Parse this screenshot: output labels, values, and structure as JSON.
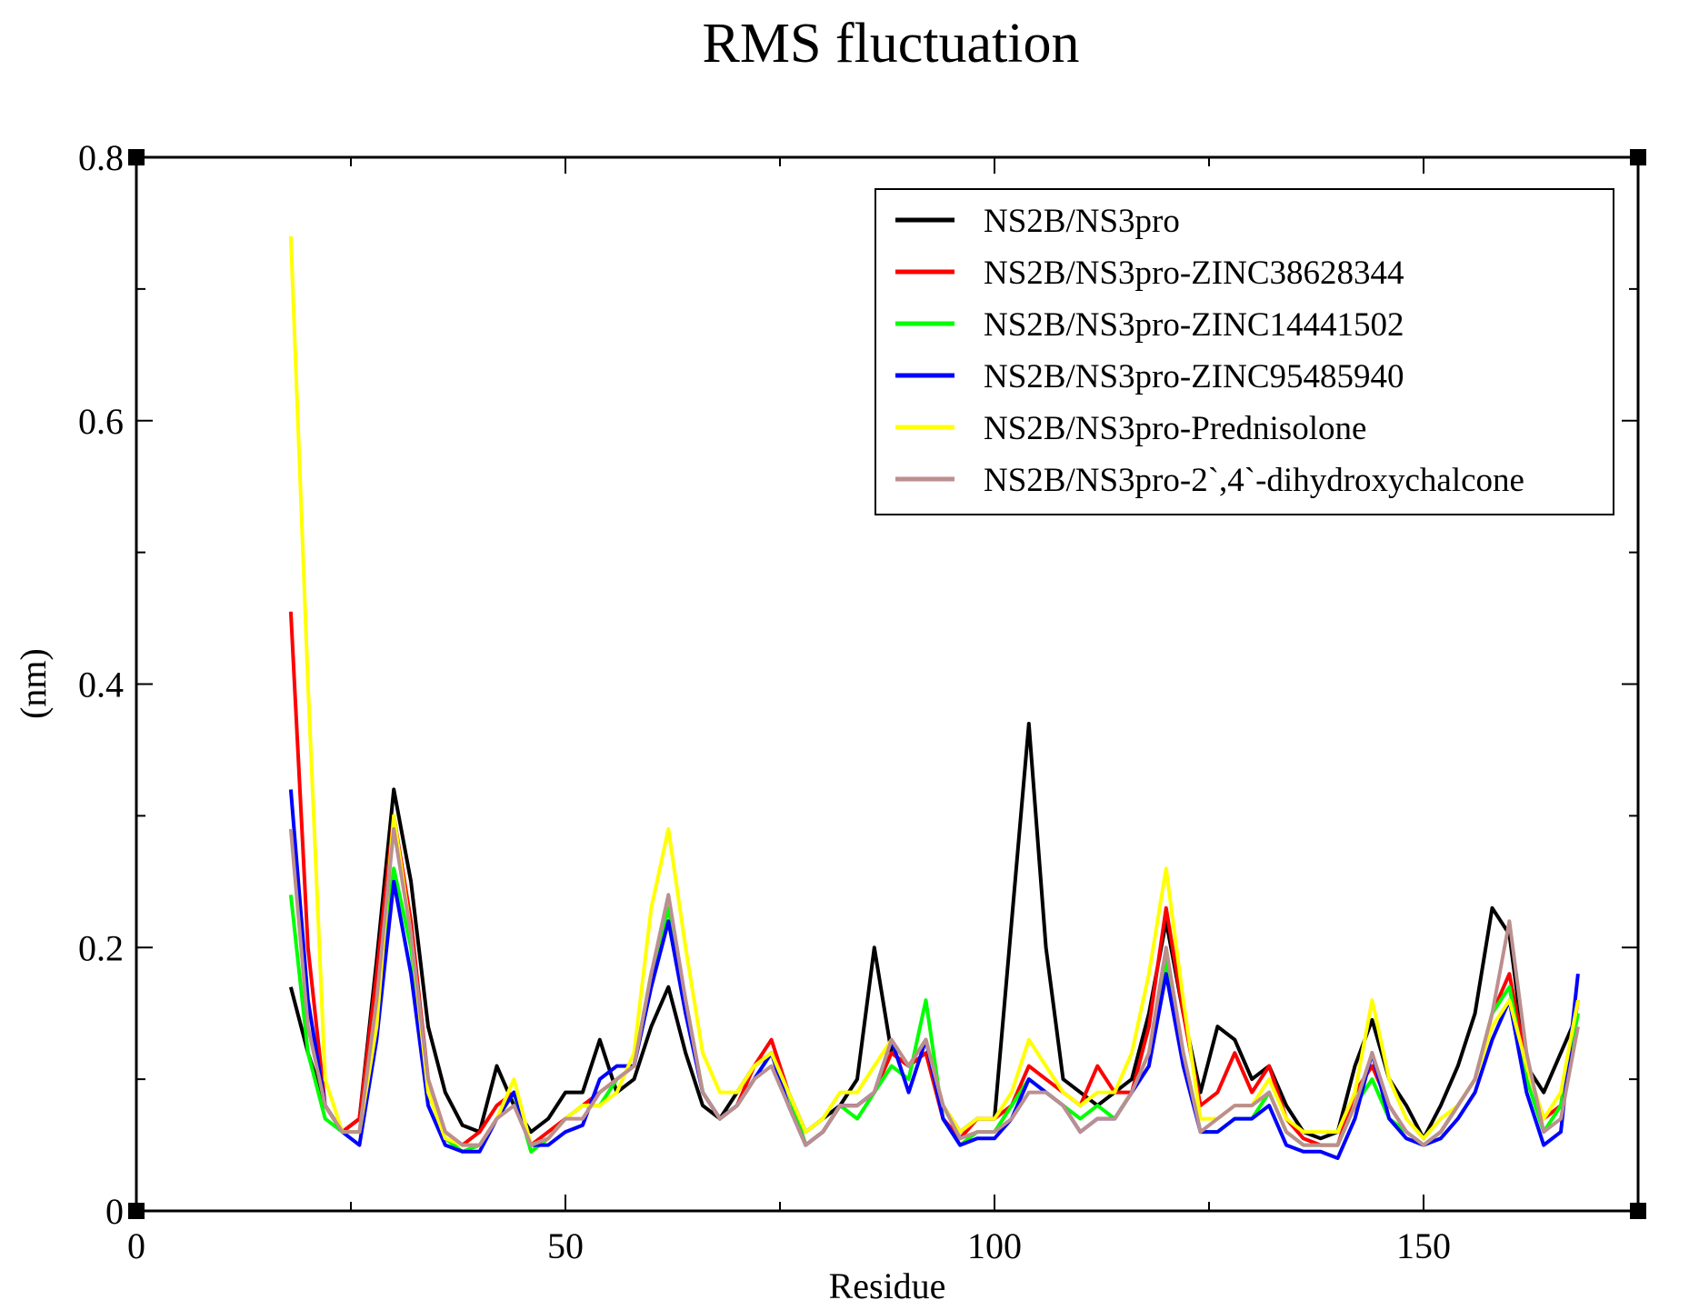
{
  "chart_data": {
    "type": "line",
    "title": "RMS fluctuation",
    "xlabel": "Residue",
    "ylabel": "(nm)",
    "xlim": [
      0,
      175
    ],
    "ylim": [
      0,
      0.8
    ],
    "xticks": [
      0,
      50,
      100,
      150
    ],
    "yticks": [
      0,
      0.2,
      0.4,
      0.6,
      0.8
    ],
    "xtick_labels": [
      "0",
      "50",
      "100",
      "150"
    ],
    "ytick_labels": [
      "0",
      "0.2",
      "0.4",
      "0.6",
      "0.8"
    ],
    "grid": false,
    "legend_position": "top-right",
    "x": [
      18,
      20,
      22,
      24,
      26,
      28,
      30,
      32,
      34,
      36,
      38,
      40,
      42,
      44,
      46,
      48,
      50,
      52,
      54,
      56,
      58,
      60,
      62,
      64,
      66,
      68,
      70,
      72,
      74,
      76,
      78,
      80,
      82,
      84,
      86,
      88,
      90,
      92,
      94,
      96,
      98,
      100,
      102,
      104,
      106,
      108,
      110,
      112,
      114,
      116,
      118,
      120,
      122,
      124,
      126,
      128,
      130,
      132,
      134,
      136,
      138,
      140,
      142,
      144,
      146,
      148,
      150,
      152,
      154,
      156,
      158,
      160,
      162,
      164,
      166,
      168
    ],
    "series": [
      {
        "name": "NS2B/NS3pro",
        "color": "#000000",
        "values": [
          0.17,
          0.12,
          0.08,
          0.06,
          0.07,
          0.19,
          0.32,
          0.25,
          0.14,
          0.09,
          0.065,
          0.06,
          0.11,
          0.08,
          0.06,
          0.07,
          0.09,
          0.09,
          0.13,
          0.09,
          0.1,
          0.14,
          0.17,
          0.12,
          0.08,
          0.07,
          0.09,
          0.11,
          0.12,
          0.09,
          0.06,
          0.07,
          0.08,
          0.1,
          0.2,
          0.12,
          0.11,
          0.13,
          0.08,
          0.06,
          0.07,
          0.07,
          0.22,
          0.37,
          0.2,
          0.1,
          0.09,
          0.08,
          0.09,
          0.1,
          0.15,
          0.22,
          0.15,
          0.09,
          0.14,
          0.13,
          0.1,
          0.11,
          0.08,
          0.06,
          0.055,
          0.06,
          0.11,
          0.145,
          0.1,
          0.08,
          0.055,
          0.08,
          0.11,
          0.15,
          0.23,
          0.21,
          0.11,
          0.09,
          0.12,
          0.15
        ]
      },
      {
        "name": "NS2B/NS3pro-ZINC38628344",
        "color": "#ff0000",
        "values": [
          0.455,
          0.2,
          0.08,
          0.06,
          0.07,
          0.18,
          0.3,
          0.22,
          0.1,
          0.06,
          0.05,
          0.06,
          0.08,
          0.09,
          0.05,
          0.06,
          0.07,
          0.08,
          0.09,
          0.1,
          0.11,
          0.18,
          0.23,
          0.16,
          0.09,
          0.07,
          0.08,
          0.11,
          0.13,
          0.09,
          0.05,
          0.06,
          0.08,
          0.08,
          0.09,
          0.12,
          0.11,
          0.12,
          0.07,
          0.055,
          0.07,
          0.07,
          0.08,
          0.11,
          0.1,
          0.09,
          0.08,
          0.11,
          0.09,
          0.09,
          0.14,
          0.23,
          0.15,
          0.08,
          0.09,
          0.12,
          0.09,
          0.11,
          0.07,
          0.055,
          0.05,
          0.05,
          0.09,
          0.11,
          0.08,
          0.06,
          0.05,
          0.06,
          0.08,
          0.1,
          0.15,
          0.18,
          0.11,
          0.07,
          0.08,
          0.16
        ]
      },
      {
        "name": "NS2B/NS3pro-ZINC14441502",
        "color": "#00ff00",
        "values": [
          0.24,
          0.12,
          0.07,
          0.06,
          0.06,
          0.16,
          0.26,
          0.2,
          0.09,
          0.055,
          0.045,
          0.05,
          0.07,
          0.09,
          0.045,
          0.055,
          0.07,
          0.08,
          0.08,
          0.1,
          0.11,
          0.18,
          0.23,
          0.16,
          0.09,
          0.07,
          0.08,
          0.1,
          0.12,
          0.09,
          0.05,
          0.06,
          0.08,
          0.07,
          0.09,
          0.11,
          0.1,
          0.16,
          0.07,
          0.05,
          0.06,
          0.06,
          0.08,
          0.1,
          0.09,
          0.08,
          0.07,
          0.08,
          0.07,
          0.09,
          0.12,
          0.19,
          0.12,
          0.06,
          0.06,
          0.07,
          0.07,
          0.09,
          0.06,
          0.05,
          0.05,
          0.05,
          0.08,
          0.1,
          0.07,
          0.06,
          0.05,
          0.06,
          0.08,
          0.1,
          0.15,
          0.17,
          0.1,
          0.06,
          0.08,
          0.15
        ]
      },
      {
        "name": "NS2B/NS3pro-ZINC95485940",
        "color": "#0000ff",
        "values": [
          0.32,
          0.16,
          0.08,
          0.06,
          0.05,
          0.13,
          0.25,
          0.18,
          0.08,
          0.05,
          0.045,
          0.045,
          0.07,
          0.09,
          0.05,
          0.05,
          0.06,
          0.065,
          0.1,
          0.11,
          0.11,
          0.17,
          0.22,
          0.15,
          0.09,
          0.07,
          0.08,
          0.1,
          0.12,
          0.08,
          0.05,
          0.06,
          0.08,
          0.08,
          0.09,
          0.13,
          0.09,
          0.13,
          0.07,
          0.05,
          0.055,
          0.055,
          0.07,
          0.1,
          0.09,
          0.08,
          0.06,
          0.07,
          0.07,
          0.09,
          0.11,
          0.18,
          0.11,
          0.06,
          0.06,
          0.07,
          0.07,
          0.08,
          0.05,
          0.045,
          0.045,
          0.04,
          0.07,
          0.12,
          0.07,
          0.055,
          0.05,
          0.055,
          0.07,
          0.09,
          0.13,
          0.16,
          0.09,
          0.05,
          0.06,
          0.18
        ]
      },
      {
        "name": "NS2B/NS3pro-Prednisolone",
        "color": "#ffff00",
        "values": [
          0.74,
          0.4,
          0.1,
          0.06,
          0.06,
          0.14,
          0.3,
          0.21,
          0.09,
          0.055,
          0.05,
          0.05,
          0.07,
          0.1,
          0.05,
          0.055,
          0.07,
          0.08,
          0.08,
          0.09,
          0.12,
          0.23,
          0.29,
          0.2,
          0.12,
          0.09,
          0.09,
          0.11,
          0.12,
          0.09,
          0.06,
          0.07,
          0.09,
          0.09,
          0.11,
          0.13,
          0.11,
          0.13,
          0.08,
          0.06,
          0.07,
          0.07,
          0.09,
          0.13,
          0.11,
          0.09,
          0.08,
          0.09,
          0.09,
          0.12,
          0.18,
          0.26,
          0.16,
          0.07,
          0.07,
          0.08,
          0.08,
          0.1,
          0.07,
          0.06,
          0.06,
          0.06,
          0.09,
          0.16,
          0.1,
          0.07,
          0.055,
          0.07,
          0.08,
          0.1,
          0.14,
          0.16,
          0.11,
          0.07,
          0.09,
          0.16
        ]
      },
      {
        "name": "NS2B/NS3pro-2`,4`-dihydroxychalcone",
        "color": "#bc8f8f",
        "values": [
          0.29,
          0.14,
          0.08,
          0.06,
          0.06,
          0.16,
          0.29,
          0.21,
          0.1,
          0.06,
          0.05,
          0.05,
          0.07,
          0.08,
          0.05,
          0.055,
          0.07,
          0.07,
          0.09,
          0.1,
          0.11,
          0.18,
          0.24,
          0.16,
          0.09,
          0.07,
          0.08,
          0.1,
          0.11,
          0.08,
          0.05,
          0.06,
          0.08,
          0.08,
          0.09,
          0.13,
          0.11,
          0.13,
          0.08,
          0.055,
          0.06,
          0.06,
          0.07,
          0.09,
          0.09,
          0.08,
          0.06,
          0.07,
          0.07,
          0.09,
          0.12,
          0.2,
          0.12,
          0.06,
          0.07,
          0.08,
          0.08,
          0.09,
          0.06,
          0.05,
          0.05,
          0.05,
          0.08,
          0.12,
          0.08,
          0.06,
          0.05,
          0.06,
          0.08,
          0.1,
          0.15,
          0.22,
          0.12,
          0.06,
          0.07,
          0.14
        ]
      }
    ]
  }
}
